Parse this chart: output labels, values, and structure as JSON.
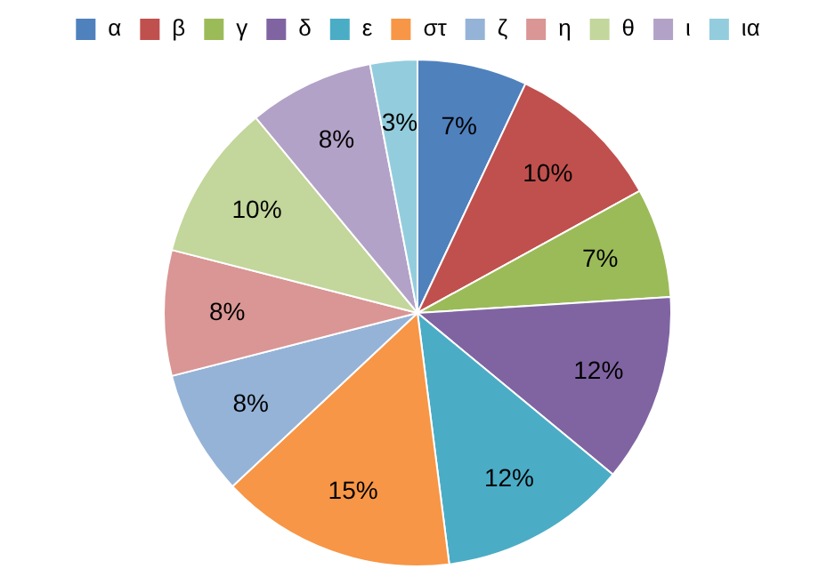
{
  "chart_data": {
    "type": "pie",
    "categories": [
      "α",
      "β",
      "γ",
      "δ",
      "ε",
      "στ",
      "ζ",
      "η",
      "θ",
      "ι",
      "ια"
    ],
    "values": [
      7,
      10,
      7,
      12,
      12,
      15,
      8,
      8,
      10,
      8,
      3
    ],
    "value_labels": [
      "7%",
      "10%",
      "7%",
      "12%",
      "12%",
      "15%",
      "8%",
      "8%",
      "10%",
      "8%",
      "3%"
    ],
    "colors": [
      "#4f81bd",
      "#c0504d",
      "#9bbb59",
      "#8064a2",
      "#4bacc6",
      "#f79646",
      "#95b3d7",
      "#d99694",
      "#c3d69b",
      "#b3a2c7",
      "#93cddd"
    ],
    "legend": "top"
  }
}
